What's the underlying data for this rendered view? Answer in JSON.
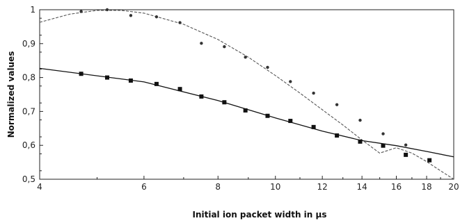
{
  "chart_data": {
    "type": "scatter",
    "title": "",
    "xlabel": "Initial ion packet width in μs",
    "ylabel": "Normalized values",
    "xscale": "log",
    "xlim": [
      4,
      20
    ],
    "ylim": [
      0.5,
      1.0
    ],
    "xticks": [
      4,
      6,
      8,
      10,
      12,
      14,
      16,
      18,
      20
    ],
    "xtick_labels": [
      "4",
      "6",
      "8",
      "10",
      "12",
      "14",
      "16",
      "18",
      "20"
    ],
    "yticks": [
      0.5,
      0.6,
      0.7,
      0.8,
      0.9,
      1.0
    ],
    "ytick_labels": [
      "0,5",
      "0,6",
      "0,7",
      "0,8",
      "0,9",
      "1"
    ],
    "grid": false,
    "legend": "none",
    "series": [
      {
        "marker": "circle",
        "color": "#333333",
        "points": [
          [
            4.7,
            0.995
          ],
          [
            5.2,
            1.0
          ],
          [
            5.7,
            0.983
          ],
          [
            6.3,
            0.979
          ],
          [
            6.9,
            0.962
          ],
          [
            7.5,
            0.901
          ],
          [
            8.2,
            0.891
          ],
          [
            8.9,
            0.86
          ],
          [
            9.7,
            0.83
          ],
          [
            10.6,
            0.788
          ],
          [
            11.6,
            0.754
          ],
          [
            12.7,
            0.72
          ],
          [
            13.9,
            0.674
          ],
          [
            15.2,
            0.634
          ],
          [
            16.6,
            0.601
          ]
        ]
      },
      {
        "marker": "square",
        "color": "#111111",
        "points": [
          [
            4.7,
            0.811
          ],
          [
            5.2,
            0.8
          ],
          [
            5.7,
            0.791
          ],
          [
            6.3,
            0.781
          ],
          [
            6.9,
            0.766
          ],
          [
            7.5,
            0.744
          ],
          [
            8.2,
            0.727
          ],
          [
            8.9,
            0.703
          ],
          [
            9.7,
            0.687
          ],
          [
            10.6,
            0.672
          ],
          [
            11.6,
            0.654
          ],
          [
            12.7,
            0.629
          ],
          [
            13.9,
            0.611
          ],
          [
            15.2,
            0.599
          ],
          [
            16.6,
            0.572
          ],
          [
            18.2,
            0.556
          ]
        ]
      }
    ],
    "fits": [
      {
        "style": "dashed",
        "color": "#555555",
        "points": [
          [
            4.0,
            0.963
          ],
          [
            4.5,
            0.987
          ],
          [
            5.0,
            0.998
          ],
          [
            5.5,
            0.998
          ],
          [
            6.0,
            0.99
          ],
          [
            7.0,
            0.957
          ],
          [
            8.0,
            0.912
          ],
          [
            9.0,
            0.86
          ],
          [
            10.0,
            0.806
          ],
          [
            11.0,
            0.754
          ],
          [
            12.0,
            0.705
          ],
          [
            13.0,
            0.66
          ],
          [
            14.0,
            0.616
          ],
          [
            15.0,
            0.577
          ],
          [
            16.0,
            0.593
          ],
          [
            17.0,
            0.577
          ],
          [
            18.0,
            0.552
          ],
          [
            19.0,
            0.525
          ],
          [
            20.0,
            0.5
          ]
        ]
      },
      {
        "style": "solid",
        "color": "#111111",
        "points": [
          [
            4.0,
            0.827
          ],
          [
            6.0,
            0.787
          ],
          [
            8.0,
            0.732
          ],
          [
            10.0,
            0.681
          ],
          [
            12.0,
            0.642
          ],
          [
            14.0,
            0.614
          ],
          [
            16.0,
            0.599
          ],
          [
            18.0,
            0.582
          ],
          [
            20.0,
            0.566
          ]
        ]
      }
    ]
  }
}
